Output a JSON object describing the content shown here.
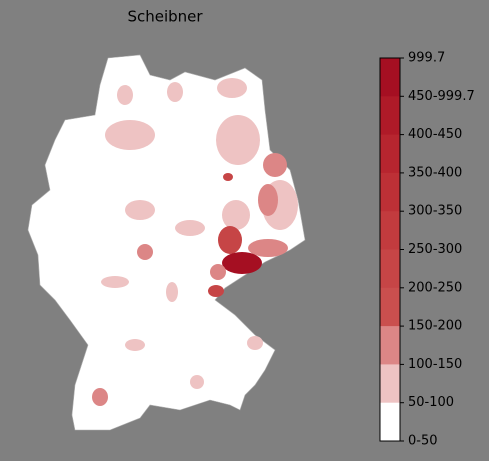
{
  "title": "Scheibner",
  "colorbar": {
    "labels": [
      "999.7",
      "450-999.7",
      "400-450",
      "350-400",
      "300-350",
      "250-300",
      "200-250",
      "150-200",
      "100-150",
      "50-100",
      "0-50"
    ],
    "colors": [
      "#a50f22",
      "#af1a28",
      "#b7252f",
      "#bd3036",
      "#c23b3e",
      "#c64546",
      "#ca4f4e",
      "#dc8686",
      "#eec3c3",
      "#ffffff"
    ]
  }
}
